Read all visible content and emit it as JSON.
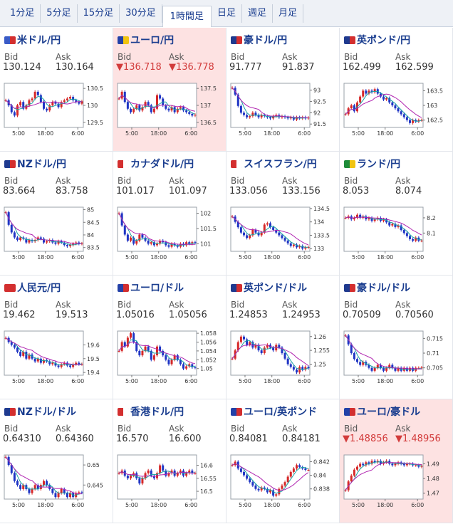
{
  "tabs": [
    {
      "label": "1分足",
      "active": false
    },
    {
      "label": "5分足",
      "active": false
    },
    {
      "label": "15分足",
      "active": false
    },
    {
      "label": "30分足",
      "active": false
    },
    {
      "label": "1時間足",
      "active": true
    },
    {
      "label": "日足",
      "active": false
    },
    {
      "label": "週足",
      "active": false
    },
    {
      "label": "月足",
      "active": false
    }
  ],
  "labels": {
    "bid": "Bid",
    "ask": "Ask"
  },
  "x_ticks": [
    "5:00",
    "18:00",
    "6:00"
  ],
  "colors": {
    "up": "#d62828",
    "down": "#1f35c4",
    "ma": "#b025b0",
    "ma2": "#19a3a3",
    "highlight": "#fde2e2",
    "title": "#1a3d8f"
  },
  "pairs": [
    {
      "name": "米ドル/円",
      "flag": [
        "#3a5bc7",
        "#d32f2f"
      ],
      "bid": "130.124",
      "ask": "130.164",
      "down": false,
      "highlight": false,
      "yticks": [
        "130.5",
        "130",
        "129.5"
      ],
      "ymin": 129.35,
      "ymax": 130.65,
      "closes": [
        130.15,
        130.0,
        129.8,
        129.7,
        130.0,
        130.1,
        129.9,
        130.0,
        130.15,
        130.2,
        130.4,
        130.3,
        130.1,
        129.9,
        129.85,
        130.0,
        130.1,
        130.05,
        129.95,
        130.1,
        130.15,
        130.2,
        130.25,
        130.15,
        130.1,
        130.05,
        130.12
      ]
    },
    {
      "name": "ユーロ/円",
      "flag": [
        "#2341a8",
        "#f1c40f"
      ],
      "bid": "▼136.718",
      "ask": "▼136.778",
      "down": true,
      "highlight": true,
      "yticks": [
        "137.5",
        "137",
        "136.5"
      ],
      "ymin": 136.35,
      "ymax": 137.65,
      "closes": [
        137.2,
        137.4,
        137.1,
        136.9,
        136.8,
        136.9,
        137.0,
        136.85,
        136.95,
        137.1,
        137.0,
        136.8,
        136.9,
        137.3,
        137.2,
        137.0,
        136.9,
        136.85,
        136.95,
        136.8,
        136.9,
        136.95,
        136.85,
        136.8,
        136.75,
        136.7,
        136.72
      ]
    },
    {
      "name": "豪ドル/円",
      "flag": [
        "#1f3a8f",
        "#d32f2f"
      ],
      "bid": "91.777",
      "ask": "91.837",
      "down": false,
      "highlight": false,
      "yticks": [
        "93",
        "92.5",
        "92",
        "91.5"
      ],
      "ymin": 91.35,
      "ymax": 93.3,
      "closes": [
        93.1,
        92.8,
        92.3,
        92.0,
        91.9,
        91.8,
        91.85,
        92.0,
        91.9,
        91.8,
        91.9,
        91.85,
        91.8,
        91.75,
        91.85,
        91.9,
        91.8,
        91.85,
        91.8,
        91.75,
        91.8,
        91.7,
        91.8,
        91.75,
        91.8,
        91.75,
        91.78
      ]
    },
    {
      "name": "英ポンド/円",
      "flag": [
        "#1f3a8f",
        "#d32f2f"
      ],
      "bid": "162.499",
      "ask": "162.599",
      "down": false,
      "highlight": false,
      "yticks": [
        "163.5",
        "163",
        "162.5"
      ],
      "ymin": 162.25,
      "ymax": 163.75,
      "closes": [
        162.7,
        162.9,
        163.0,
        162.8,
        163.1,
        163.3,
        163.5,
        163.4,
        163.5,
        163.45,
        163.55,
        163.4,
        163.3,
        163.2,
        163.25,
        163.1,
        163.0,
        162.9,
        162.8,
        162.7,
        162.6,
        162.5,
        162.4,
        162.5,
        162.45,
        162.5,
        162.5
      ]
    },
    {
      "name": "NZドル/円",
      "flag": [
        "#1f3a8f",
        "#d32f2f"
      ],
      "bid": "83.664",
      "ask": "83.758",
      "down": false,
      "highlight": false,
      "yticks": [
        "85",
        "84.5",
        "84",
        "83.5"
      ],
      "ymin": 83.35,
      "ymax": 85.1,
      "closes": [
        84.9,
        84.4,
        84.1,
        83.9,
        83.8,
        83.9,
        83.85,
        83.7,
        83.8,
        83.75,
        83.8,
        83.9,
        83.85,
        83.7,
        83.75,
        83.8,
        83.7,
        83.65,
        83.75,
        83.7,
        83.6,
        83.55,
        83.6,
        83.65,
        83.7,
        83.65,
        83.66
      ]
    },
    {
      "name": "カナダドル/円",
      "flag": [
        "#d32f2f",
        "#ffffff"
      ],
      "bid": "101.017",
      "ask": "101.097",
      "down": false,
      "highlight": false,
      "yticks": [
        "102",
        "101.5",
        "101"
      ],
      "ymin": 100.75,
      "ymax": 102.2,
      "closes": [
        102.0,
        101.6,
        101.3,
        101.1,
        101.2,
        101.0,
        101.1,
        101.3,
        101.2,
        101.1,
        101.0,
        101.05,
        100.95,
        101.0,
        101.1,
        101.05,
        100.95,
        100.9,
        101.0,
        100.95,
        100.9,
        101.0,
        100.95,
        101.05,
        101.0,
        101.05,
        101.02
      ]
    },
    {
      "name": "スイスフラン/円",
      "flag": [
        "#d32f2f",
        "#ffffff"
      ],
      "bid": "133.056",
      "ask": "133.156",
      "down": false,
      "highlight": false,
      "yticks": [
        "134.5",
        "134",
        "133.5",
        "133"
      ],
      "ymin": 132.9,
      "ymax": 134.55,
      "closes": [
        134.2,
        134.0,
        133.8,
        133.6,
        133.5,
        133.4,
        133.5,
        133.7,
        133.6,
        133.5,
        133.6,
        133.9,
        133.95,
        133.8,
        133.7,
        133.6,
        133.5,
        133.4,
        133.3,
        133.2,
        133.1,
        133.15,
        133.05,
        133.1,
        133.0,
        133.05,
        133.06
      ]
    },
    {
      "name": "ランド/円",
      "flag": [
        "#1e8c3a",
        "#f1c40f"
      ],
      "bid": "8.053",
      "ask": "8.074",
      "down": false,
      "highlight": false,
      "yticks": [
        "8.2",
        "8.1"
      ],
      "ymin": 7.98,
      "ymax": 8.27,
      "closes": [
        8.2,
        8.21,
        8.19,
        8.2,
        8.22,
        8.2,
        8.21,
        8.19,
        8.2,
        8.18,
        8.19,
        8.2,
        8.18,
        8.19,
        8.17,
        8.15,
        8.16,
        8.14,
        8.15,
        8.12,
        8.1,
        8.08,
        8.06,
        8.05,
        8.07,
        8.05,
        8.05
      ]
    },
    {
      "name": "人民元/円",
      "flag": [
        "#d32f2f",
        "#d32f2f"
      ],
      "bid": "19.462",
      "ask": "19.513",
      "down": false,
      "highlight": false,
      "yticks": [
        "19.6",
        "19.5",
        "19.4"
      ],
      "ymin": 19.38,
      "ymax": 19.7,
      "closes": [
        19.65,
        19.62,
        19.6,
        19.58,
        19.55,
        19.52,
        19.55,
        19.5,
        19.53,
        19.5,
        19.48,
        19.5,
        19.47,
        19.49,
        19.48,
        19.46,
        19.47,
        19.45,
        19.44,
        19.46,
        19.47,
        19.45,
        19.44,
        19.46,
        19.47,
        19.46,
        19.46
      ]
    },
    {
      "name": "ユーロ/ドル",
      "flag": [
        "#2341a8",
        "#d32f2f"
      ],
      "bid": "1.05016",
      "ask": "1.05056",
      "down": false,
      "highlight": false,
      "yticks": [
        "1.058",
        "1.056",
        "1.054",
        "1.052",
        "1.05"
      ],
      "ymin": 1.0485,
      "ymax": 1.0585,
      "closes": [
        1.054,
        1.056,
        1.055,
        1.057,
        1.058,
        1.056,
        1.054,
        1.053,
        1.054,
        1.055,
        1.054,
        1.052,
        1.053,
        1.055,
        1.054,
        1.053,
        1.052,
        1.051,
        1.052,
        1.053,
        1.052,
        1.051,
        1.05,
        1.0505,
        1.051,
        1.0503,
        1.0502
      ]
    },
    {
      "name": "英ポンド/ドル",
      "flag": [
        "#1f3a8f",
        "#d32f2f"
      ],
      "bid": "1.24853",
      "ask": "1.24953",
      "down": false,
      "highlight": false,
      "yticks": [
        "1.26",
        "1.255",
        "1.25"
      ],
      "ymin": 1.246,
      "ymax": 1.262,
      "closes": [
        1.252,
        1.255,
        1.258,
        1.26,
        1.259,
        1.257,
        1.258,
        1.256,
        1.257,
        1.255,
        1.254,
        1.256,
        1.257,
        1.256,
        1.255,
        1.257,
        1.256,
        1.254,
        1.252,
        1.25,
        1.249,
        1.248,
        1.247,
        1.249,
        1.248,
        1.249,
        1.2485
      ]
    },
    {
      "name": "豪ドル/ドル",
      "flag": [
        "#1f3a8f",
        "#d32f2f"
      ],
      "bid": "0.70509",
      "ask": "0.70560",
      "down": false,
      "highlight": false,
      "yticks": [
        "0.715",
        "0.71",
        "0.705"
      ],
      "ymin": 0.7025,
      "ymax": 0.7175,
      "closes": [
        0.716,
        0.713,
        0.71,
        0.708,
        0.707,
        0.706,
        0.707,
        0.706,
        0.705,
        0.704,
        0.705,
        0.706,
        0.705,
        0.704,
        0.705,
        0.706,
        0.705,
        0.704,
        0.705,
        0.704,
        0.705,
        0.704,
        0.705,
        0.704,
        0.705,
        0.705,
        0.7051
      ]
    },
    {
      "name": "NZドル/ドル",
      "flag": [
        "#1f3a8f",
        "#d32f2f"
      ],
      "bid": "0.64310",
      "ask": "0.64360",
      "down": false,
      "highlight": false,
      "yticks": [
        "0.65",
        "0.645"
      ],
      "ymin": 0.6415,
      "ymax": 0.6525,
      "closes": [
        0.652,
        0.65,
        0.648,
        0.646,
        0.645,
        0.644,
        0.645,
        0.644,
        0.643,
        0.644,
        0.645,
        0.644,
        0.645,
        0.646,
        0.645,
        0.644,
        0.643,
        0.642,
        0.643,
        0.644,
        0.643,
        0.642,
        0.643,
        0.642,
        0.643,
        0.6432,
        0.6431
      ]
    },
    {
      "name": "香港ドル/円",
      "flag": [
        "#d32f2f",
        "#ffffff"
      ],
      "bid": "16.570",
      "ask": "16.600",
      "down": false,
      "highlight": false,
      "yticks": [
        "16.6",
        "16.55",
        "16.5"
      ],
      "ymin": 16.47,
      "ymax": 16.64,
      "closes": [
        16.57,
        16.58,
        16.56,
        16.55,
        16.56,
        16.57,
        16.55,
        16.53,
        16.55,
        16.57,
        16.58,
        16.56,
        16.55,
        16.57,
        16.6,
        16.58,
        16.56,
        16.57,
        16.58,
        16.56,
        16.57,
        16.58,
        16.56,
        16.57,
        16.58,
        16.57,
        16.57
      ]
    },
    {
      "name": "ユーロ/英ポンド",
      "flag": [
        "#2341a8",
        "#d32f2f"
      ],
      "bid": "0.84081",
      "ask": "0.84181",
      "down": false,
      "highlight": false,
      "yticks": [
        "0.842",
        "0.84",
        "0.838"
      ],
      "ymin": 0.8365,
      "ymax": 0.843,
      "closes": [
        0.8415,
        0.842,
        0.841,
        0.8405,
        0.84,
        0.8395,
        0.839,
        0.8385,
        0.838,
        0.8378,
        0.8382,
        0.838,
        0.8375,
        0.8378,
        0.837,
        0.8372,
        0.838,
        0.8385,
        0.839,
        0.8398,
        0.8405,
        0.841,
        0.8415,
        0.8412,
        0.841,
        0.8408,
        0.8408
      ]
    },
    {
      "name": "ユーロ/豪ドル",
      "flag": [
        "#2341a8",
        "#d32f2f"
      ],
      "bid": "▼1.48856",
      "ask": "▼1.48956",
      "down": true,
      "highlight": true,
      "yticks": [
        "1.49",
        "1.48",
        "1.47"
      ],
      "ymin": 1.466,
      "ymax": 1.496,
      "closes": [
        1.472,
        1.478,
        1.482,
        1.486,
        1.488,
        1.49,
        1.489,
        1.491,
        1.49,
        1.492,
        1.491,
        1.492,
        1.49,
        1.491,
        1.492,
        1.49,
        1.489,
        1.49,
        1.491,
        1.49,
        1.489,
        1.49,
        1.49,
        1.489,
        1.489,
        1.488,
        1.4886
      ]
    }
  ]
}
